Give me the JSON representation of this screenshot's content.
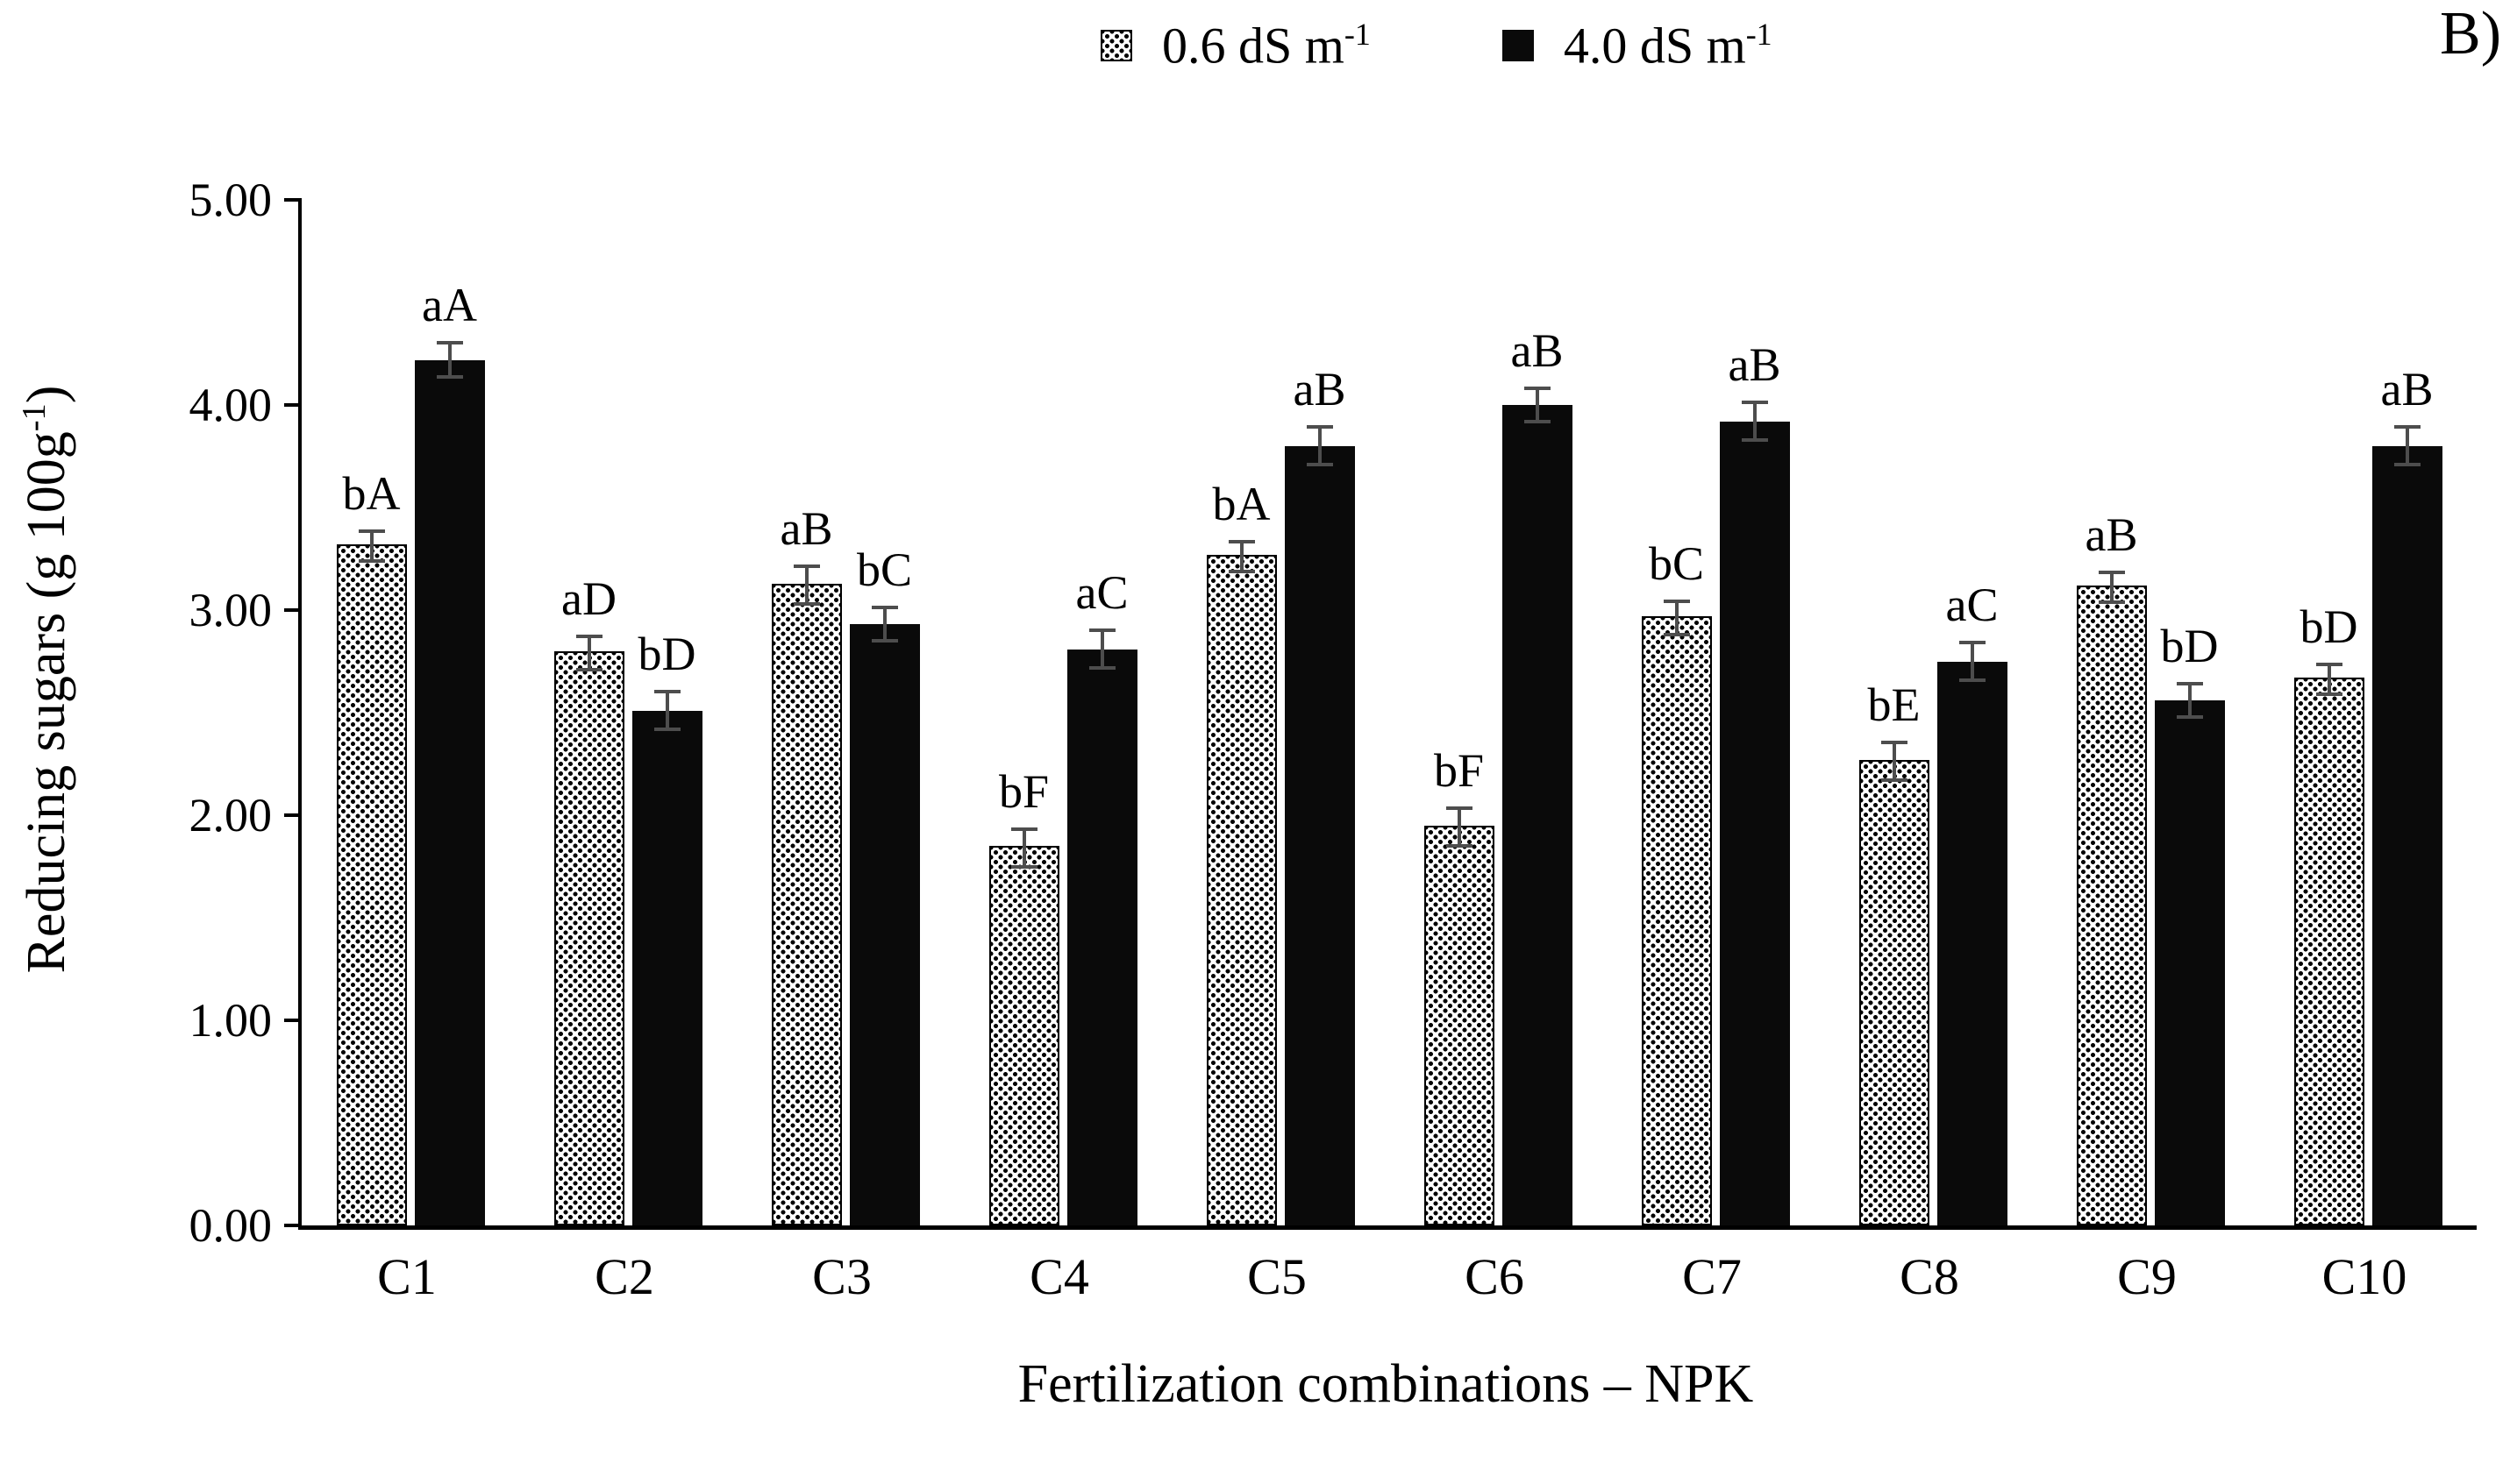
{
  "figure_label": "B)",
  "legend": [
    {
      "name": "series-0-6",
      "label_base": "0.6 dS m",
      "label_sup": "-1"
    },
    {
      "name": "series-4-0",
      "label_base": "4.0 dS m",
      "label_sup": "-1"
    }
  ],
  "colors": {
    "bar_solid": "#0a0a0a",
    "bar_pattern_dot": "#000000",
    "error_bar": "#4d4d4d",
    "axis": "#000000"
  },
  "chart_data": {
    "type": "bar",
    "title": "",
    "xlabel": "Fertilization combinations – NPK",
    "ylabel": {
      "base": "Reducing sugars (g 100g",
      "sup": "-1",
      "close": ")"
    },
    "ylim": [
      0,
      5
    ],
    "yticks": [
      "0.00",
      "1.00",
      "2.00",
      "3.00",
      "4.00",
      "5.00"
    ],
    "grid": false,
    "legend_position": "top",
    "categories": [
      "C1",
      "C2",
      "C3",
      "C4",
      "C5",
      "C6",
      "C7",
      "C8",
      "C9",
      "C10"
    ],
    "series": [
      {
        "name": "0.6 dS m-1",
        "style": "pattern",
        "values": [
          3.32,
          2.8,
          3.13,
          1.85,
          3.27,
          1.95,
          2.97,
          2.27,
          3.12,
          2.67
        ],
        "errors": [
          0.08,
          0.09,
          0.1,
          0.1,
          0.08,
          0.1,
          0.09,
          0.1,
          0.08,
          0.08
        ],
        "labels": [
          "bA",
          "aD",
          "aB",
          "bF",
          "bA",
          "bF",
          "bC",
          "bE",
          "aB",
          "bD"
        ]
      },
      {
        "name": "4.0 dS m-1",
        "style": "solid",
        "values": [
          4.22,
          2.51,
          2.93,
          2.81,
          3.8,
          4.0,
          3.92,
          2.75,
          2.56,
          3.8
        ],
        "errors": [
          0.09,
          0.1,
          0.09,
          0.1,
          0.1,
          0.09,
          0.1,
          0.1,
          0.09,
          0.1
        ],
        "labels": [
          "aA",
          "bD",
          "bC",
          "aC",
          "aB",
          "aB",
          "aB",
          "aC",
          "bD",
          "aB"
        ]
      }
    ]
  }
}
